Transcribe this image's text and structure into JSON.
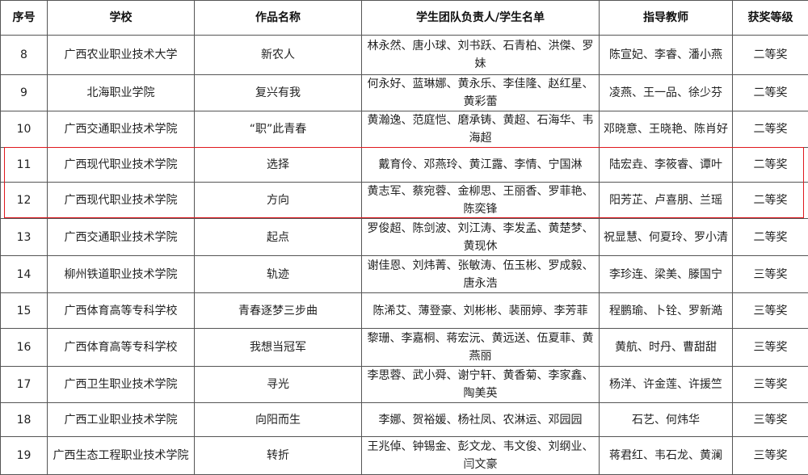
{
  "headers": [
    "序号",
    "学校",
    "作品名称",
    "学生团队负责人/学生名单",
    "指导教师",
    "获奖等级"
  ],
  "highlight_color": "#e0191e",
  "rows": [
    {
      "no": "8",
      "school": "广西农业职业技术大学",
      "work": "新农人",
      "students": "林永然、唐小球、刘书跃、石青柏、洪傑、罗妹",
      "teachers": "陈宣妃、李睿、潘小燕",
      "award": "二等奖"
    },
    {
      "no": "9",
      "school": "北海职业学院",
      "work": "复兴有我",
      "students": "何永好、蓝琳娜、黄永乐、李佳隆、赵红星、黄彩蕾",
      "teachers": "凌燕、王一品、徐少芬",
      "award": "二等奖"
    },
    {
      "no": "10",
      "school": "广西交通职业技术学院",
      "work": "“职”此青春",
      "students": "黄瀚逸、范庭恺、磨承铸、黄超、石海华、韦海超",
      "teachers": "邓晓意、王晓艳、陈肖好",
      "award": "二等奖"
    },
    {
      "no": "11",
      "school": "广西现代职业技术学院",
      "work": "选择",
      "students": "戴育伶、邓燕玲、黄江露、李情、宁国淋",
      "teachers": "陆宏垚、李筱睿、谭叶",
      "award": "二等奖"
    },
    {
      "no": "12",
      "school": "广西现代职业技术学院",
      "work": "方向",
      "students": "黄志军、蔡宛蓉、金柳思、王丽香、罗菲艳、陈奕锋",
      "teachers": "阳芳芷、卢喜朋、兰瑶",
      "award": "二等奖"
    },
    {
      "no": "13",
      "school": "广西交通职业技术学院",
      "work": "起点",
      "students": "罗俊超、陈剑波、刘江涛、李发孟、黄楚梦、黄现休",
      "teachers": "祝显慧、何夏玲、罗小清",
      "award": "二等奖"
    },
    {
      "no": "14",
      "school": "柳州铁道职业技术学院",
      "work": "轨迹",
      "students": "谢佳恩、刘炜菁、张敏涛、伍玉彬、罗成毅、唐永浩",
      "teachers": "李珍连、梁美、滕国宁",
      "award": "三等奖"
    },
    {
      "no": "15",
      "school": "广西体育高等专科学校",
      "work": "青春逐梦三步曲",
      "students": "陈浠艾、薄登豪、刘彬彬、裴丽婷、李芳菲",
      "teachers": "程鹏瑜、卜铨、罗新澔",
      "award": "三等奖"
    },
    {
      "no": "16",
      "school": "广西体育高等专科学校",
      "work": "我想当冠军",
      "students": "黎珊、李嘉桐、蒋宏沅、黄远送、伍夏菲、黄燕丽",
      "teachers": "黄航、时丹、曹甜甜",
      "award": "三等奖"
    },
    {
      "no": "17",
      "school": "广西卫生职业技术学院",
      "work": "寻光",
      "students": "李思蓉、武小舜、谢宁轩、黄香菊、李家鑫、陶美英",
      "teachers": "杨洋、许金莲、许援竺",
      "award": "三等奖"
    },
    {
      "no": "18",
      "school": "广西工业职业技术学院",
      "work": "向阳而生",
      "students": "李娜、贺裕媛、杨社凤、农淋运、邓园园",
      "teachers": "石艺、何炜华",
      "award": "三等奖"
    },
    {
      "no": "19",
      "school": "广西生态工程职业技术学院",
      "work": "转折",
      "students": "王兆倬、钟锡金、彭文龙、韦文俊、刘纲业、闫文豪",
      "teachers": "蒋君红、韦石龙、黄澜",
      "award": "三等奖"
    }
  ]
}
